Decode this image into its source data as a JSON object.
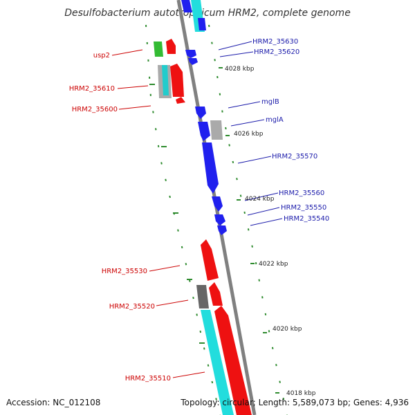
{
  "title": "Desulfobacterium autotrophicum HRM2, complete genome",
  "footer": {
    "accession": "Accession: NC_012108",
    "topology": "Topology: circular; Length: 5,589,073 bp; Genes: 4,936"
  },
  "colors": {
    "forward_gene": "#ff0000",
    "reverse_gene": "#0000ff",
    "rna_gene": "#00c0c0",
    "other_gene": "#999999",
    "tick": "#2e8b2e",
    "backbone": "#808080"
  },
  "left_labels": [
    {
      "text": "usp2",
      "color": "red"
    },
    {
      "text": "HRM2_35610",
      "color": "red"
    },
    {
      "text": "HRM2_35600",
      "color": "red"
    },
    {
      "text": "HRM2_35530",
      "color": "red"
    },
    {
      "text": "HRM2_35520",
      "color": "red"
    },
    {
      "text": "HRM2_35510",
      "color": "red"
    }
  ],
  "right_labels": [
    {
      "text": "HRM2_35630"
    },
    {
      "text": "HRM2_35620"
    },
    {
      "text": "mglB"
    },
    {
      "text": "mglA"
    },
    {
      "text": "HRM2_35570"
    },
    {
      "text": "HRM2_35560"
    },
    {
      "text": "HRM2_35550"
    },
    {
      "text": "HRM2_35540"
    }
  ],
  "ticks": [
    "4028 kbp",
    "4026 kbp",
    "4024 kbp",
    "4022 kbp",
    "4020 kbp",
    "4018 kbp"
  ]
}
